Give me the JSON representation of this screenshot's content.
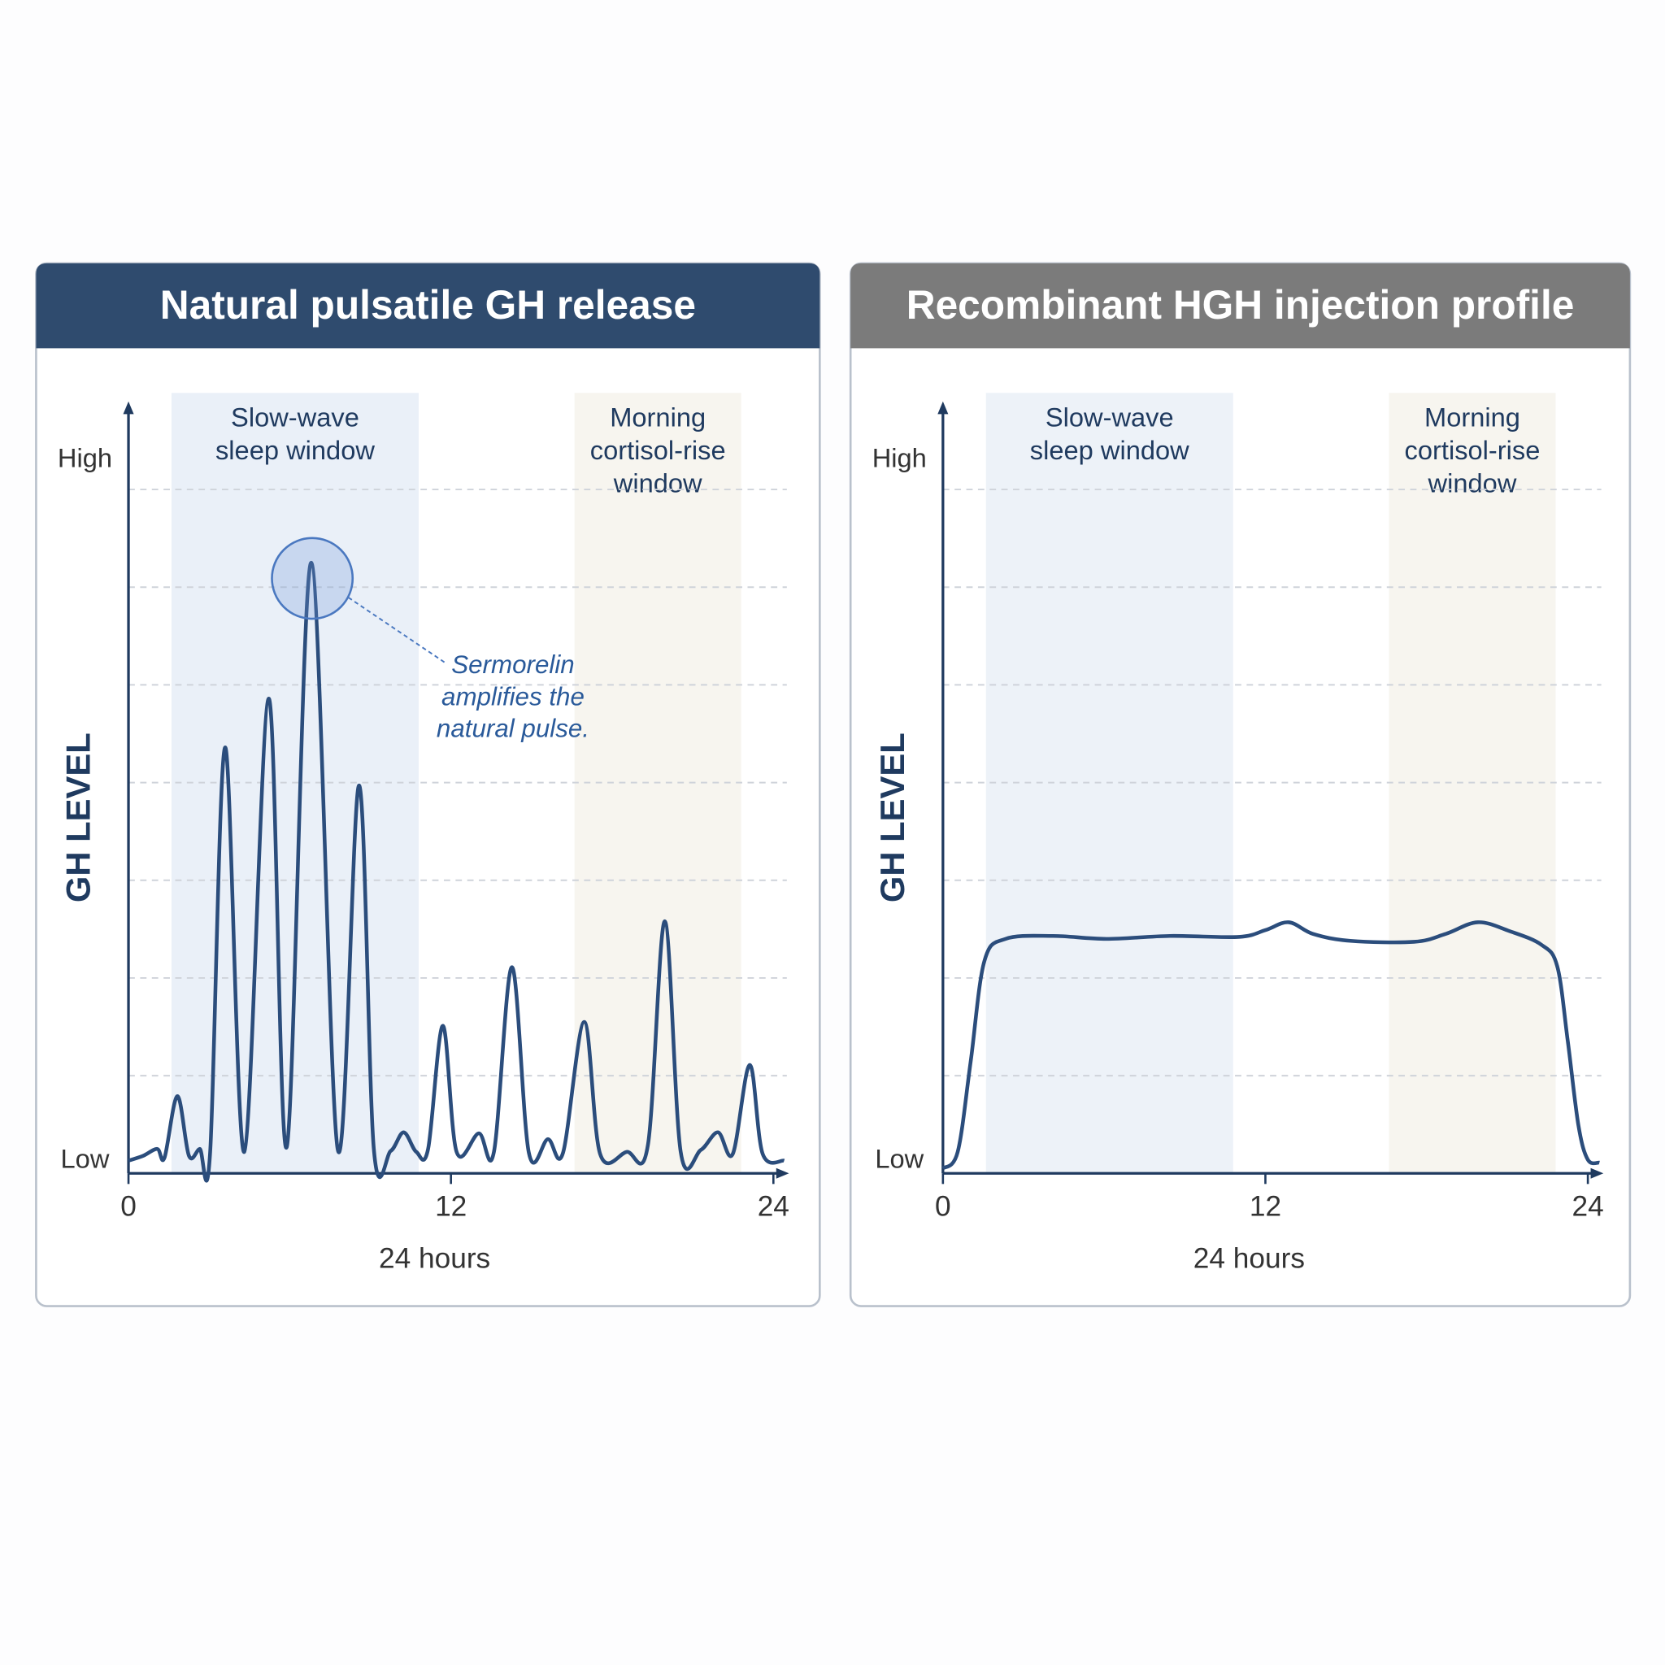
{
  "chart_data": [
    {
      "type": "line",
      "title": "Natural pulsatile GH release",
      "header_color": "#2f4b6e",
      "ylabel": "GH LEVEL",
      "xlabel": "24 hours",
      "xlim": [
        0,
        24.5
      ],
      "ylim": [
        0,
        7.88
      ],
      "xticks": [
        0,
        12,
        24
      ],
      "yticks": [
        {
          "value": 7.3,
          "label": "High"
        },
        {
          "value": 0.13,
          "label": "Low"
        }
      ],
      "grid_lines": [
        1,
        2,
        3,
        4,
        5,
        6,
        7
      ],
      "bands": [
        {
          "lines": [
            "Slow-wave",
            "sleep window"
          ],
          "x": [
            1.6,
            10.8
          ],
          "color": "#eaf0f8"
        },
        {
          "lines": [
            "Morning",
            "cortisol-rise",
            "window"
          ],
          "x": [
            16.6,
            22.8
          ],
          "color": "#f7f5ef"
        }
      ],
      "series": [
        {
          "color": "#2b4d7c",
          "x": [
            0,
            0.55,
            1.07,
            1.34,
            1.82,
            2.25,
            2.65,
            3.04,
            3.6,
            4.31,
            5.22,
            5.89,
            6.8,
            7.79,
            8.58,
            9.13,
            9.76,
            10.24,
            10.71,
            11.15,
            11.7,
            12.21,
            13.04,
            13.6,
            14.27,
            14.9,
            15.61,
            16.17,
            16.96,
            17.55,
            18.54,
            19.33,
            19.96,
            20.55,
            21.3,
            21.94,
            22.49,
            23.12,
            23.6,
            24.4
          ],
          "values": [
            0.13,
            0.18,
            0.25,
            0.16,
            0.79,
            0.18,
            0.25,
            0.22,
            4.36,
            0.22,
            4.86,
            0.27,
            6.25,
            0.24,
            3.97,
            0.25,
            0.23,
            0.42,
            0.22,
            0.25,
            1.51,
            0.22,
            0.41,
            0.22,
            2.11,
            0.21,
            0.35,
            0.21,
            1.55,
            0.2,
            0.22,
            0.29,
            2.58,
            0.22,
            0.24,
            0.42,
            0.2,
            1.11,
            0.2,
            0.13
          ]
        }
      ],
      "annotation": {
        "x": 6.84,
        "y": 6.09,
        "lines": [
          "Sermorelin",
          "amplifies the",
          "natural pulse."
        ]
      }
    },
    {
      "type": "line",
      "title": "Recombinant HGH injection profile",
      "header_color": "#7b7b7b",
      "ylabel": "GH LEVEL",
      "xlabel": "24 hours",
      "xlim": [
        0,
        24.5
      ],
      "ylim": [
        0,
        7.88
      ],
      "xticks": [
        0,
        12,
        24
      ],
      "yticks": [
        {
          "value": 7.3,
          "label": "High"
        },
        {
          "value": 0.13,
          "label": "Low"
        }
      ],
      "grid_lines": [
        1,
        2,
        3,
        4,
        5,
        6,
        7
      ],
      "bands": [
        {
          "lines": [
            "Slow-wave",
            "sleep window"
          ],
          "x": [
            1.6,
            10.8
          ],
          "color": "#edf2f8"
        },
        {
          "lines": [
            "Morning",
            "cortisol-rise",
            "window"
          ],
          "x": [
            16.6,
            22.8
          ],
          "color": "#f7f5ef"
        }
      ],
      "series": [
        {
          "color": "#2b4d7c",
          "x": [
            0,
            0.55,
            1.03,
            1.54,
            2.33,
            4.1,
            6.08,
            8.45,
            11.0,
            12,
            12.87,
            13.78,
            15.16,
            17.53,
            18.7,
            19.9,
            21.08,
            22.27,
            22.86,
            23.25,
            23.65,
            24,
            24.43
          ],
          "values": [
            0.05,
            0.22,
            1.14,
            2.17,
            2.4,
            2.43,
            2.4,
            2.43,
            2.42,
            2.49,
            2.57,
            2.45,
            2.38,
            2.37,
            2.45,
            2.57,
            2.48,
            2.34,
            2.12,
            1.36,
            0.49,
            0.14,
            0.11
          ]
        }
      ]
    }
  ]
}
